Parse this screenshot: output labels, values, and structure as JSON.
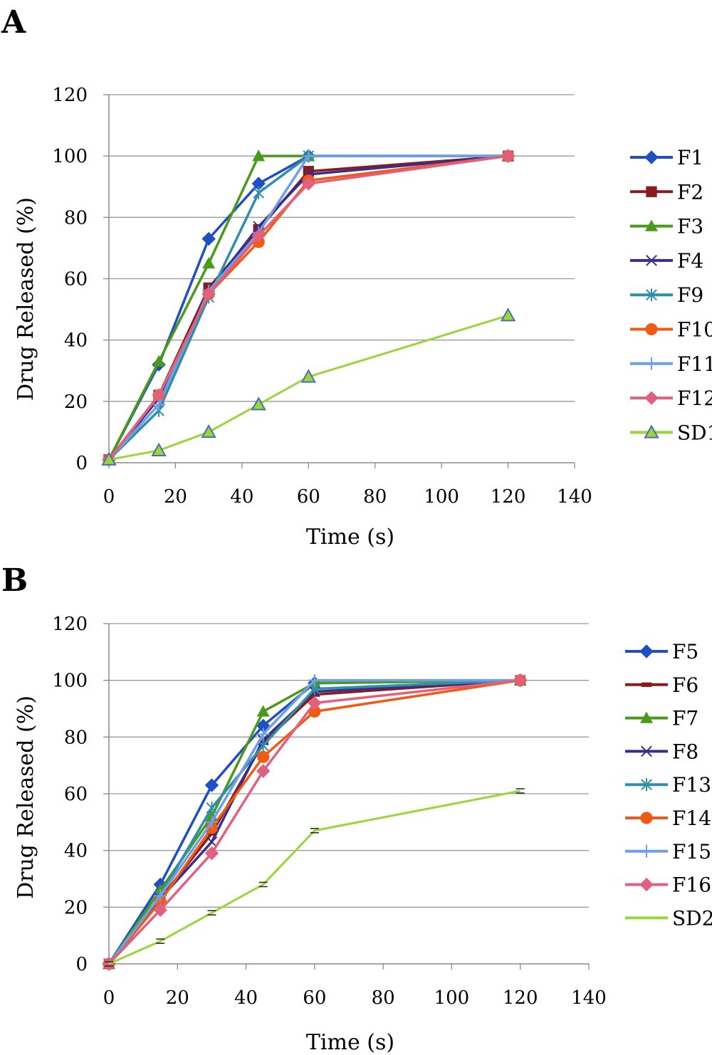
{
  "chart_data": [
    {
      "type": "line",
      "panel": "A",
      "xlabel": "Time (s)",
      "ylabel": "Drug Released (%)",
      "xlim": [
        0,
        140
      ],
      "ylim": [
        0,
        120
      ],
      "xticks": [
        0,
        20,
        40,
        60,
        80,
        100,
        120,
        140
      ],
      "yticks": [
        0,
        20,
        40,
        60,
        80,
        100,
        120
      ],
      "grid": "horizontal",
      "legend_position": "right",
      "x": [
        0,
        15,
        30,
        45,
        60,
        120
      ],
      "series": [
        {
          "name": "F1",
          "color": "#1f4fc4",
          "marker": "diamond",
          "values": [
            1,
            32,
            73,
            91,
            100,
            100
          ]
        },
        {
          "name": "F2",
          "color": "#8b1a1a",
          "marker": "square",
          "values": [
            1,
            22,
            57,
            76,
            95,
            100
          ]
        },
        {
          "name": "F3",
          "color": "#4a9a1a",
          "marker": "triangle",
          "values": [
            1,
            33,
            65,
            100,
            100,
            100
          ]
        },
        {
          "name": "F4",
          "color": "#3a2d8c",
          "marker": "x",
          "values": [
            1,
            21,
            56,
            77,
            94,
            100
          ]
        },
        {
          "name": "F9",
          "color": "#2e8fa8",
          "marker": "star",
          "values": [
            1,
            17,
            54,
            88,
            100,
            100
          ]
        },
        {
          "name": "F10",
          "color": "#f05a12",
          "marker": "circle",
          "values": [
            1,
            22,
            55,
            72,
            92,
            100
          ]
        },
        {
          "name": "F11",
          "color": "#6f9fe8",
          "marker": "plus",
          "values": [
            1,
            19,
            56,
            75,
            100,
            100
          ]
        },
        {
          "name": "F12",
          "color": "#e0607e",
          "marker": "diamond",
          "values": [
            1,
            22,
            55,
            74,
            91,
            100
          ]
        },
        {
          "name": "SD1",
          "color": "#9ad63a",
          "marker": "triangle-hollow",
          "values": [
            1,
            4,
            10,
            19,
            28,
            48
          ]
        }
      ]
    },
    {
      "type": "line",
      "panel": "B",
      "xlabel": "Time (s)",
      "ylabel": "Drug Released (%)",
      "xlim": [
        0,
        140
      ],
      "ylim": [
        0,
        120
      ],
      "xticks": [
        0,
        20,
        40,
        60,
        80,
        100,
        120,
        140
      ],
      "yticks": [
        0,
        20,
        40,
        60,
        80,
        100,
        120
      ],
      "grid": "horizontal",
      "legend_position": "right",
      "x": [
        0,
        15,
        30,
        45,
        60,
        120
      ],
      "series": [
        {
          "name": "F5",
          "color": "#1f4fc4",
          "marker": "diamond",
          "values": [
            0,
            28,
            63,
            84,
            99,
            100
          ]
        },
        {
          "name": "F6",
          "color": "#8b1a1a",
          "marker": "dash",
          "values": [
            0,
            23,
            46,
            78,
            95,
            100
          ]
        },
        {
          "name": "F7",
          "color": "#4a9a1a",
          "marker": "triangle",
          "values": [
            0,
            26,
            52,
            89,
            99,
            100
          ]
        },
        {
          "name": "F8",
          "color": "#3a2d8c",
          "marker": "x",
          "values": [
            0,
            23,
            43,
            79,
            96,
            100
          ]
        },
        {
          "name": "F13",
          "color": "#2e8fa8",
          "marker": "star",
          "values": [
            0,
            24,
            55,
            77,
            97,
            100
          ]
        },
        {
          "name": "F14",
          "color": "#f05a12",
          "marker": "circle",
          "values": [
            0,
            22,
            48,
            73,
            89,
            100
          ]
        },
        {
          "name": "F15",
          "color": "#6f9fe8",
          "marker": "plus",
          "values": [
            0,
            24,
            50,
            81,
            100,
            100
          ]
        },
        {
          "name": "F16",
          "color": "#e0607e",
          "marker": "diamond",
          "values": [
            0,
            19,
            39,
            68,
            92,
            100
          ]
        },
        {
          "name": "SD2",
          "color": "#9ad63a",
          "marker": "none",
          "values": [
            0,
            8,
            18,
            28,
            47,
            61
          ]
        }
      ]
    }
  ]
}
